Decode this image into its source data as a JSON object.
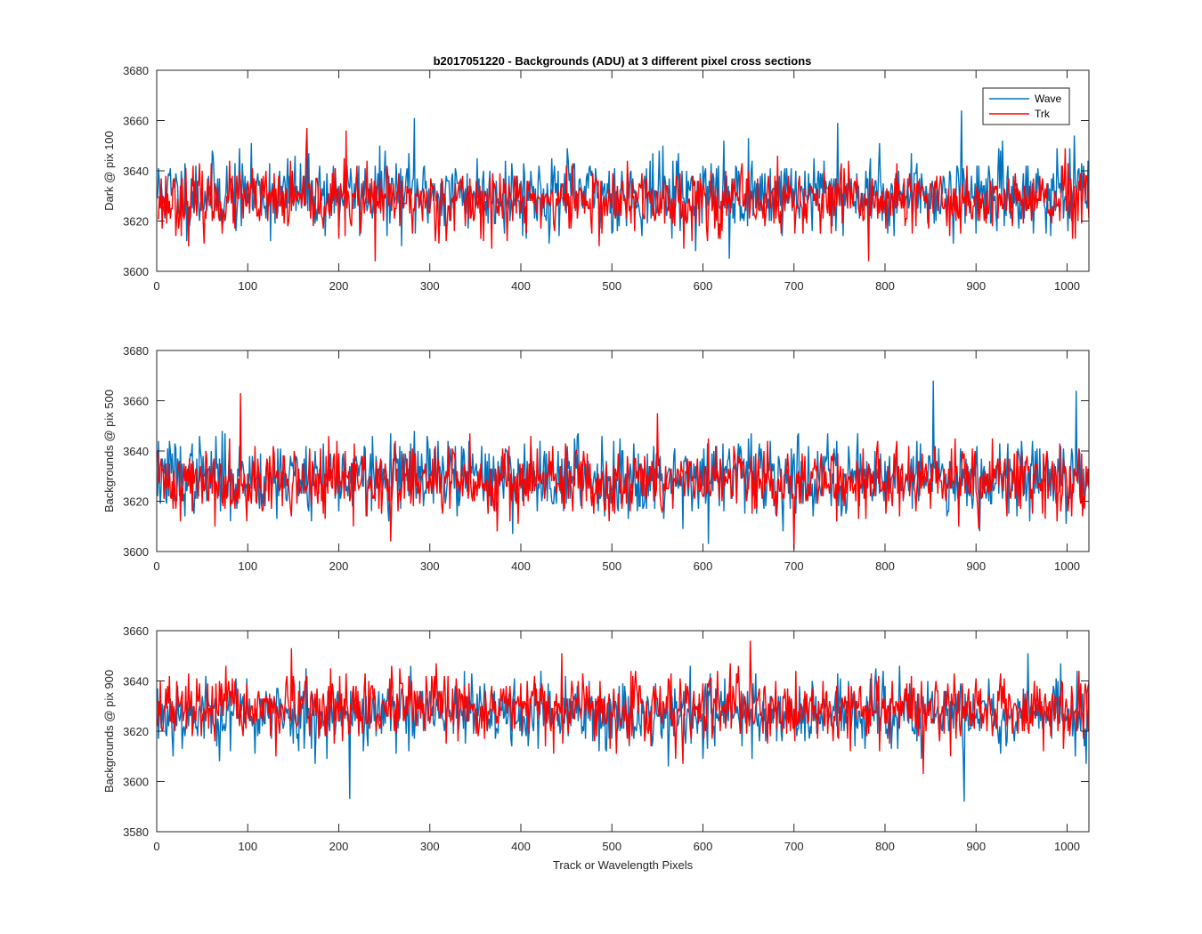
{
  "figure_title": "b2017051220 - Backgrounds (ADU) at 3 different pixel cross sections",
  "colors": {
    "wave": "#0072BD",
    "trk": "#FF0000",
    "axis": "#262626"
  },
  "chart_data": [
    {
      "type": "line",
      "title": "b2017051220 - Backgrounds (ADU) at 3 different pixel cross sections",
      "xlabel": "",
      "ylabel": "Dark @ pix 100",
      "xlim": [
        0,
        1024
      ],
      "ylim": [
        3600,
        3680
      ],
      "xticks": [
        0,
        100,
        200,
        300,
        400,
        500,
        600,
        700,
        800,
        900,
        1000
      ],
      "yticks": [
        3600,
        3620,
        3640,
        3660,
        3680
      ],
      "legend": {
        "position": "top-right",
        "entries": [
          "Wave",
          "Trk"
        ]
      },
      "grid": false,
      "series": [
        {
          "name": "Wave",
          "mean": 3631,
          "sd": 7.5,
          "min": 3605,
          "max": 3664,
          "spikes": [
            [
              283,
              3661
            ],
            [
              748,
              3659
            ],
            [
              884,
              3664
            ],
            [
              629,
              3605
            ]
          ],
          "seed": 11
        },
        {
          "name": "Trk",
          "mean": 3628,
          "sd": 6.5,
          "min": 3604,
          "max": 3657,
          "spikes": [
            [
              165,
              3657
            ],
            [
              208,
              3656
            ],
            [
              240,
              3604
            ],
            [
              782,
              3604
            ]
          ],
          "seed": 23
        }
      ]
    },
    {
      "type": "line",
      "xlabel": "",
      "ylabel": "Backgrounds @ pix 500",
      "xlim": [
        0,
        1024
      ],
      "ylim": [
        3600,
        3680
      ],
      "xticks": [
        0,
        100,
        200,
        300,
        400,
        500,
        600,
        700,
        800,
        900,
        1000
      ],
      "yticks": [
        3600,
        3620,
        3640,
        3660,
        3680
      ],
      "grid": false,
      "series": [
        {
          "name": "Wave",
          "mean": 3630,
          "sd": 7.5,
          "min": 3603,
          "max": 3668,
          "spikes": [
            [
              853,
              3668
            ],
            [
              1010,
              3664
            ],
            [
              606,
              3603
            ]
          ],
          "seed": 37
        },
        {
          "name": "Trk",
          "mean": 3628,
          "sd": 7.0,
          "min": 3601,
          "max": 3663,
          "spikes": [
            [
              92,
              3663
            ],
            [
              700,
              3601
            ],
            [
              257,
              3604
            ],
            [
              550,
              3655
            ]
          ],
          "seed": 41
        }
      ]
    },
    {
      "type": "line",
      "xlabel": "Track or Wavelength Pixels",
      "ylabel": "Backgrounds @ pix 900",
      "xlim": [
        0,
        1024
      ],
      "ylim": [
        3580,
        3660
      ],
      "xticks": [
        0,
        100,
        200,
        300,
        400,
        500,
        600,
        700,
        800,
        900,
        1000
      ],
      "yticks": [
        3580,
        3600,
        3620,
        3640,
        3660
      ],
      "grid": false,
      "series": [
        {
          "name": "Wave",
          "mean": 3627,
          "sd": 7.0,
          "min": 3592,
          "max": 3652,
          "spikes": [
            [
              212,
              3593
            ],
            [
              887,
              3592
            ],
            [
              957,
              3651
            ]
          ],
          "seed": 53
        },
        {
          "name": "Trk",
          "mean": 3629,
          "sd": 6.5,
          "min": 3603,
          "max": 3656,
          "spikes": [
            [
              652,
              3656
            ],
            [
              148,
              3653
            ],
            [
              842,
              3603
            ]
          ],
          "seed": 67
        }
      ]
    }
  ]
}
